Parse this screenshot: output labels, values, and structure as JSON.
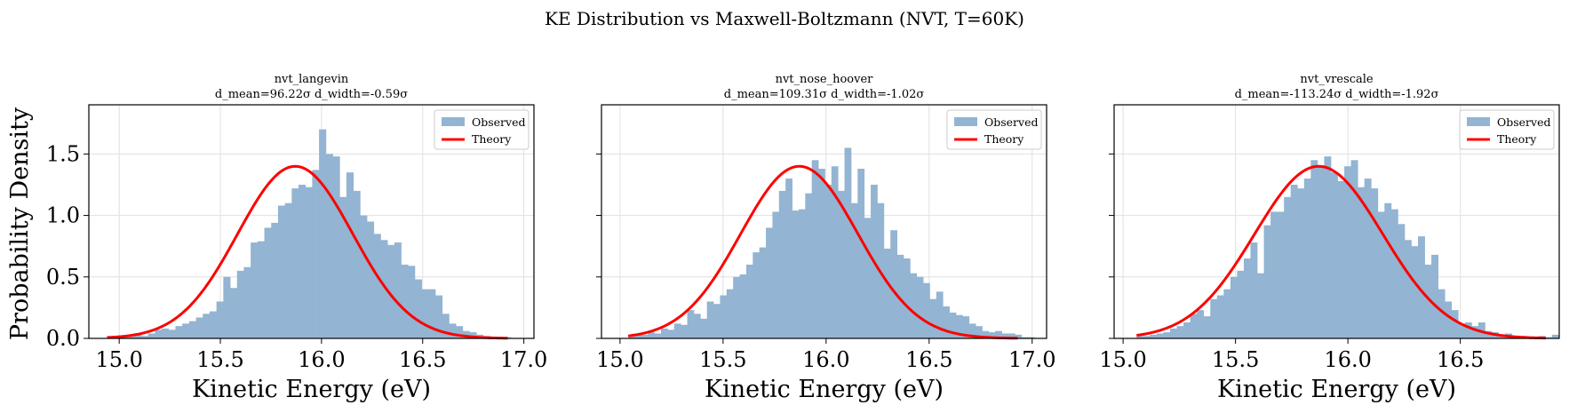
{
  "chart_data": {
    "suptitle": "KE Distribution vs Maxwell-Boltzmann (NVT, T=60K)",
    "ylabel": "Probability Density",
    "xlabel": "Kinetic Energy (eV)",
    "legend": {
      "observed": "Observed",
      "theory": "Theory"
    },
    "colors": {
      "bars": "#93b4d2",
      "curve": "#ff0000",
      "grid": "#e0e0e0"
    },
    "ylim": [
      0,
      1.9
    ],
    "yticks": [
      0.0,
      0.5,
      1.0,
      1.5
    ],
    "ytick_labels": [
      "0.0",
      "0.5",
      "1.0",
      "1.5"
    ],
    "panels": [
      {
        "type": "bar",
        "title": "nvt_langevin",
        "subtitle": "d_mean=96.22σ  d_width=-0.59σ",
        "xlim": [
          14.85,
          17.05
        ],
        "xticks": [
          15.0,
          15.5,
          16.0,
          16.5,
          17.0
        ],
        "xtick_labels": [
          "15.0",
          "15.5",
          "16.0",
          "16.5",
          "17.0"
        ],
        "bin_start": 14.94,
        "bin_width": 0.0338,
        "values": [
          0.02,
          0.02,
          0.01,
          0.03,
          0.03,
          0.02,
          0.04,
          0.07,
          0.08,
          0.07,
          0.1,
          0.12,
          0.14,
          0.17,
          0.2,
          0.22,
          0.3,
          0.5,
          0.41,
          0.55,
          0.58,
          0.78,
          0.79,
          0.9,
          0.94,
          1.08,
          1.1,
          1.22,
          1.25,
          1.23,
          1.37,
          1.7,
          1.5,
          1.48,
          1.15,
          1.35,
          1.2,
          1.0,
          0.95,
          0.85,
          0.8,
          0.76,
          0.78,
          0.6,
          0.59,
          0.48,
          0.4,
          0.4,
          0.35,
          0.2,
          0.12,
          0.1,
          0.06,
          0.05,
          0.03,
          0.02,
          0.01,
          0.01,
          0.01
        ],
        "theory": {
          "mu": 15.87,
          "sigma": 0.285,
          "x_range": [
            14.94,
            16.92
          ]
        }
      },
      {
        "type": "bar",
        "title": "nvt_nose_hoover",
        "subtitle": "d_mean=109.31σ  d_width=-1.02σ",
        "xlim": [
          14.91,
          17.07
        ],
        "xticks": [
          15.0,
          15.5,
          16.0,
          16.5,
          17.0
        ],
        "xtick_labels": [
          "15.0",
          "15.5",
          "16.0",
          "16.5",
          "17.0"
        ],
        "bin_start": 15.04,
        "bin_width": 0.0318,
        "values": [
          0.02,
          0.04,
          0.03,
          0.05,
          0.04,
          0.08,
          0.07,
          0.12,
          0.11,
          0.23,
          0.2,
          0.16,
          0.3,
          0.28,
          0.35,
          0.4,
          0.5,
          0.52,
          0.6,
          0.7,
          0.74,
          0.9,
          1.03,
          1.2,
          1.3,
          1.04,
          1.05,
          1.18,
          1.45,
          1.38,
          1.25,
          1.4,
          1.2,
          1.55,
          1.1,
          1.38,
          0.98,
          1.25,
          1.1,
          0.73,
          0.88,
          0.68,
          0.65,
          0.53,
          0.5,
          0.45,
          0.32,
          0.38,
          0.26,
          0.21,
          0.19,
          0.18,
          0.12,
          0.1,
          0.06,
          0.05,
          0.06,
          0.04,
          0.04,
          0.03,
          0.01,
          0.01
        ],
        "theory": {
          "mu": 15.87,
          "sigma": 0.285,
          "x_range": [
            15.04,
            16.93
          ]
        }
      },
      {
        "type": "bar",
        "title": "nvt_vrescale",
        "subtitle": "d_mean=-113.24σ  d_width=-1.92σ",
        "xlim": [
          14.96,
          16.94
        ],
        "xticks": [
          15.0,
          15.5,
          16.0,
          16.5
        ],
        "xtick_labels": [
          "15.0",
          "15.5",
          "16.0",
          "16.5"
        ],
        "bin_start": 15.06,
        "bin_width": 0.0298,
        "values": [
          0.02,
          0.02,
          0.03,
          0.04,
          0.05,
          0.08,
          0.1,
          0.13,
          0.2,
          0.23,
          0.18,
          0.32,
          0.35,
          0.4,
          0.5,
          0.55,
          0.65,
          0.78,
          0.53,
          0.92,
          1.03,
          1.03,
          1.15,
          1.25,
          1.22,
          1.3,
          1.45,
          1.4,
          1.48,
          1.35,
          1.28,
          1.4,
          1.45,
          1.23,
          1.3,
          1.22,
          1.03,
          1.1,
          1.05,
          0.93,
          0.8,
          0.75,
          0.83,
          0.6,
          0.68,
          0.4,
          0.3,
          0.23,
          0.12,
          0.13,
          0.1,
          0.13,
          0.06,
          0.05,
          0.03,
          0.04,
          0.02,
          0.02,
          0.01,
          0.01,
          0.02,
          0.01,
          0.03
        ],
        "theory": {
          "mu": 15.87,
          "sigma": 0.285,
          "x_range": [
            15.06,
            16.88
          ]
        }
      }
    ]
  }
}
